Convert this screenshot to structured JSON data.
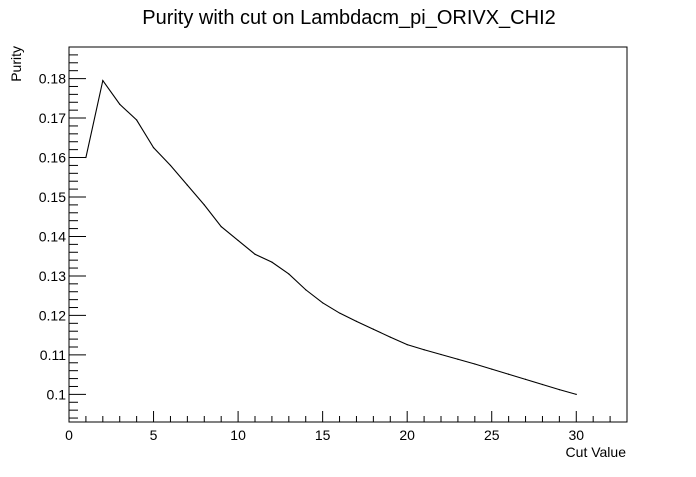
{
  "chart_data": {
    "type": "line",
    "title": "Purity with cut on Lambdacm_pi_ORIVX_CHI2",
    "xlabel": "Cut Value",
    "ylabel": "Purity",
    "xlim": [
      0,
      33
    ],
    "ylim": [
      0.093,
      0.188
    ],
    "x_ticks": [
      0,
      5,
      10,
      15,
      20,
      25,
      30
    ],
    "y_ticks": [
      0.1,
      0.11,
      0.12,
      0.13,
      0.14,
      0.15,
      0.16,
      0.17,
      0.18
    ],
    "x_tick_labels": [
      "0",
      "5",
      "10",
      "15",
      "20",
      "25",
      "30"
    ],
    "y_tick_labels": [
      "0.1",
      "0.11",
      "0.12",
      "0.13",
      "0.14",
      "0.15",
      "0.16",
      "0.17",
      "0.18"
    ],
    "grid": false,
    "legend": "none",
    "series": [
      {
        "x": [
          1,
          2,
          3,
          4,
          5,
          6,
          7,
          8,
          9,
          10,
          11,
          12,
          13,
          14,
          15,
          16,
          17,
          18,
          19,
          20,
          21,
          22,
          23,
          24,
          25,
          26,
          27,
          28,
          29,
          30
        ],
        "values": [
          0.16,
          0.1795,
          0.1735,
          0.1695,
          0.1625,
          0.158,
          0.153,
          0.148,
          0.1425,
          0.139,
          0.1355,
          0.1335,
          0.1305,
          0.1265,
          0.1232,
          0.1206,
          0.1185,
          0.1165,
          0.1145,
          0.1126,
          0.1113,
          0.1101,
          0.1089,
          0.1077,
          0.1064,
          0.1051,
          0.1038,
          0.1025,
          0.1012,
          0.1
        ]
      }
    ]
  }
}
